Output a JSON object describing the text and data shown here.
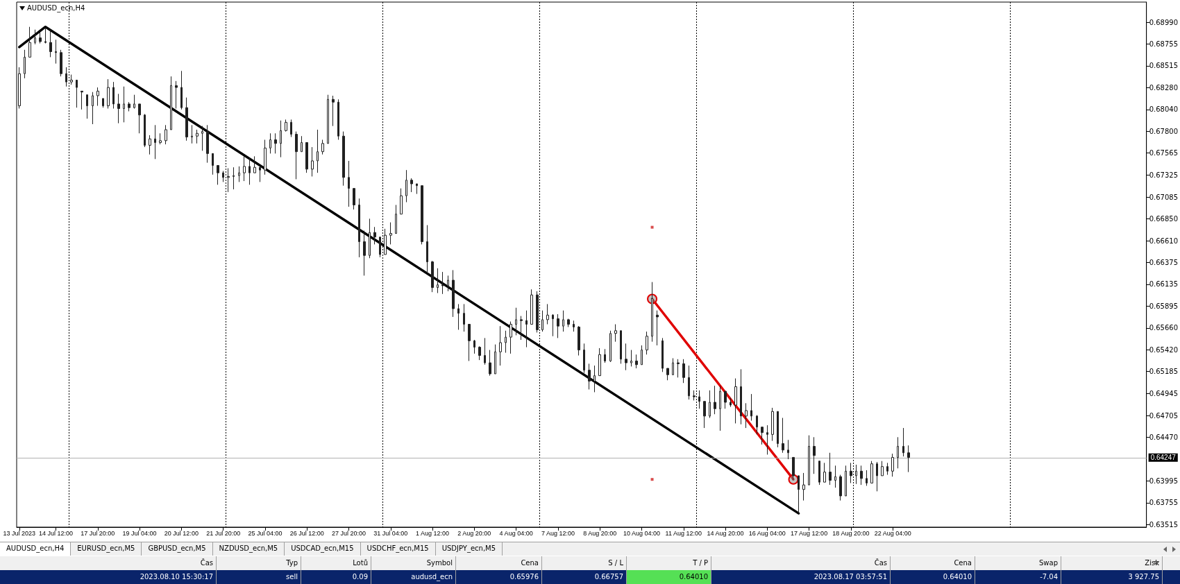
{
  "chart_data": {
    "type": "candlestick",
    "title": "AUDUSD_ecn,H4",
    "color": "#202020",
    "categories": [
      "13 Jul 2023",
      null,
      null,
      null,
      null,
      null,
      null,
      "14 Jul 12:00",
      null,
      null,
      null,
      null,
      null,
      null,
      null,
      "17 Jul 20:00",
      null,
      null,
      null,
      null,
      null,
      null,
      null,
      "19 Jul 04:00",
      null,
      null,
      null,
      null,
      null,
      null,
      null,
      "20 Jul 12:00",
      null,
      null,
      null,
      null,
      null,
      null,
      null,
      "21 Jul 20:00",
      null,
      null,
      null,
      null,
      null,
      null,
      null,
      "25 Jul 04:00",
      null,
      null,
      null,
      null,
      null,
      null,
      null,
      "26 Jul 12:00",
      null,
      null,
      null,
      null,
      null,
      null,
      null,
      "27 Jul 20:00",
      null,
      null,
      null,
      null,
      null,
      null,
      null,
      "31 Jul 04:00",
      null,
      null,
      null,
      null,
      null,
      null,
      null,
      "1 Aug 12:00",
      null,
      null,
      null,
      null,
      null,
      null,
      null,
      "2 Aug 20:00",
      null,
      null,
      null,
      null,
      null,
      null,
      null,
      "4 Aug 04:00",
      null,
      null,
      null,
      null,
      null,
      null,
      null,
      "7 Aug 12:00",
      null,
      null,
      null,
      null,
      null,
      null,
      null,
      "8 Aug 20:00",
      null,
      null,
      null,
      null,
      null,
      null,
      null,
      "10 Aug 04:00",
      null,
      null,
      null,
      null,
      null,
      null,
      null,
      "11 Aug 12:00",
      null,
      null,
      null,
      null,
      null,
      null,
      null,
      "14 Aug 20:00",
      null,
      null,
      null,
      null,
      null,
      null,
      null,
      "16 Aug 04:00",
      null,
      null,
      null,
      null,
      null,
      null,
      null,
      "17 Aug 12:00",
      null,
      null,
      null,
      null,
      null,
      null,
      null,
      "18 Aug 20:00",
      null,
      null,
      null,
      null,
      null,
      null,
      null,
      "22 Aug 04:00",
      null,
      null,
      null,
      null,
      null,
      null,
      null,
      null,
      null,
      null,
      null,
      null,
      null,
      null,
      null,
      null,
      null,
      null,
      null,
      null,
      null,
      null,
      null,
      null,
      null,
      null,
      null,
      null,
      null,
      null,
      null,
      null,
      null,
      null,
      null,
      null,
      null,
      null,
      null,
      null,
      null,
      null,
      null,
      null,
      null,
      null,
      null,
      null
    ],
    "ohlc": [
      [
        0.6808,
        0.685,
        0.6805,
        0.6843
      ],
      [
        0.6843,
        0.6869,
        0.6838,
        0.6861
      ],
      [
        0.6861,
        0.6894,
        0.6861,
        0.6877
      ],
      [
        0.6877,
        0.6891,
        0.6875,
        0.6882
      ],
      [
        0.6882,
        0.6888,
        0.6876,
        0.6878
      ],
      [
        0.6878,
        0.6893,
        0.6876,
        0.6877
      ],
      [
        0.6877,
        0.6891,
        0.6861,
        0.6867
      ],
      [
        0.6867,
        0.688,
        0.6854,
        0.6866
      ],
      [
        0.6866,
        0.6869,
        0.684,
        0.6843
      ],
      [
        0.6843,
        0.685,
        0.6829,
        0.6834
      ],
      [
        0.6834,
        0.6842,
        0.6831,
        0.6836
      ],
      [
        0.6836,
        0.6836,
        0.6806,
        0.6828
      ],
      [
        0.6824,
        0.6824,
        0.6804,
        0.6823
      ],
      [
        0.682,
        0.682,
        0.6794,
        0.6808
      ],
      [
        0.6808,
        0.6823,
        0.6788,
        0.6819
      ],
      [
        0.6819,
        0.6828,
        0.6808,
        0.6824
      ],
      [
        0.6816,
        0.6816,
        0.6806,
        0.6808
      ],
      [
        0.6808,
        0.6837,
        0.6805,
        0.6828
      ],
      [
        0.6828,
        0.6834,
        0.6805,
        0.681
      ],
      [
        0.681,
        0.6821,
        0.6789,
        0.6805
      ],
      [
        0.6805,
        0.6829,
        0.679,
        0.681
      ],
      [
        0.681,
        0.6812,
        0.6802,
        0.6806
      ],
      [
        0.6806,
        0.682,
        0.6805,
        0.681
      ],
      [
        0.681,
        0.681,
        0.6778,
        0.6798
      ],
      [
        0.6798,
        0.6799,
        0.6763,
        0.6765
      ],
      [
        0.6765,
        0.6776,
        0.6755,
        0.6772
      ],
      [
        0.6772,
        0.6787,
        0.675,
        0.6768
      ],
      [
        0.6768,
        0.6778,
        0.6766,
        0.677
      ],
      [
        0.677,
        0.6787,
        0.6766,
        0.6782
      ],
      [
        0.6782,
        0.684,
        0.6782,
        0.683
      ],
      [
        0.683,
        0.6835,
        0.6805,
        0.6828
      ],
      [
        0.6828,
        0.6846,
        0.6804,
        0.6806
      ],
      [
        0.6806,
        0.6817,
        0.677,
        0.6774
      ],
      [
        0.6774,
        0.6787,
        0.6767,
        0.6775
      ],
      [
        0.6775,
        0.6782,
        0.6767,
        0.6778
      ],
      [
        0.6778,
        0.6786,
        0.6759,
        0.678
      ],
      [
        0.678,
        0.6787,
        0.6746,
        0.6756
      ],
      [
        0.6756,
        0.6756,
        0.6733,
        0.6743
      ],
      [
        0.6743,
        0.6743,
        0.6722,
        0.6735
      ],
      [
        0.6735,
        0.6737,
        0.6725,
        0.673
      ],
      [
        0.673,
        0.674,
        0.6714,
        0.6731
      ],
      [
        0.6731,
        0.6741,
        0.6717,
        0.6732
      ],
      [
        0.6732,
        0.6742,
        0.6725,
        0.6735
      ],
      [
        0.6735,
        0.6753,
        0.6726,
        0.6742
      ],
      [
        0.6742,
        0.6751,
        0.6722,
        0.6735
      ],
      [
        0.6735,
        0.6753,
        0.6735,
        0.6741
      ],
      [
        0.6741,
        0.6741,
        0.6725,
        0.6738
      ],
      [
        0.6738,
        0.6771,
        0.6733,
        0.6762
      ],
      [
        0.6762,
        0.6778,
        0.6756,
        0.6771
      ],
      [
        0.6771,
        0.6778,
        0.6756,
        0.6767
      ],
      [
        0.6767,
        0.6792,
        0.6752,
        0.6781
      ],
      [
        0.6781,
        0.6793,
        0.678,
        0.679
      ],
      [
        0.679,
        0.6793,
        0.6774,
        0.6777
      ],
      [
        0.6777,
        0.678,
        0.6728,
        0.6758
      ],
      [
        0.6758,
        0.6775,
        0.6758,
        0.6768
      ],
      [
        0.6768,
        0.6768,
        0.6735,
        0.6739
      ],
      [
        0.6739,
        0.6763,
        0.6731,
        0.6748
      ],
      [
        0.6748,
        0.6782,
        0.6735,
        0.6758
      ],
      [
        0.6758,
        0.6771,
        0.6755,
        0.6767
      ],
      [
        0.6767,
        0.682,
        0.6767,
        0.6815
      ],
      [
        0.6815,
        0.6819,
        0.6786,
        0.6812
      ],
      [
        0.6812,
        0.6815,
        0.6771,
        0.6775
      ],
      [
        0.6775,
        0.678,
        0.6721,
        0.673
      ],
      [
        0.673,
        0.6748,
        0.6698,
        0.6718
      ],
      [
        0.6718,
        0.6718,
        0.6695,
        0.67
      ],
      [
        0.67,
        0.6707,
        0.6643,
        0.666
      ],
      [
        0.666,
        0.6672,
        0.6623,
        0.6645
      ],
      [
        0.6645,
        0.6685,
        0.6642,
        0.667
      ],
      [
        0.667,
        0.6676,
        0.6657,
        0.6665
      ],
      [
        0.6665,
        0.6665,
        0.6643,
        0.6646
      ],
      [
        0.6646,
        0.6674,
        0.6646,
        0.6667
      ],
      [
        0.6667,
        0.6681,
        0.6657,
        0.6669
      ],
      [
        0.6669,
        0.67,
        0.6669,
        0.669
      ],
      [
        0.669,
        0.6718,
        0.669,
        0.671
      ],
      [
        0.671,
        0.6738,
        0.6703,
        0.6727
      ],
      [
        0.6727,
        0.6729,
        0.6714,
        0.6723
      ],
      [
        0.6723,
        0.6723,
        0.6712,
        0.6721
      ],
      [
        0.6721,
        0.6721,
        0.6657,
        0.666
      ],
      [
        0.666,
        0.6678,
        0.6627,
        0.6638
      ],
      [
        0.6638,
        0.6639,
        0.6605,
        0.661
      ],
      [
        0.661,
        0.6631,
        0.6604,
        0.6613
      ],
      [
        0.6613,
        0.6627,
        0.6603,
        0.6612
      ],
      [
        0.6612,
        0.6623,
        0.6606,
        0.6618
      ],
      [
        0.6618,
        0.6629,
        0.6578,
        0.6587
      ],
      [
        0.6587,
        0.6592,
        0.6564,
        0.6582
      ],
      [
        0.6582,
        0.6592,
        0.6562,
        0.657
      ],
      [
        0.657,
        0.657,
        0.653,
        0.6552
      ],
      [
        0.6552,
        0.6553,
        0.6538,
        0.6545
      ],
      [
        0.6545,
        0.6546,
        0.6531,
        0.6536
      ],
      [
        0.6536,
        0.6555,
        0.6526,
        0.6528
      ],
      [
        0.6528,
        0.6542,
        0.6514,
        0.6516
      ],
      [
        0.6516,
        0.6548,
        0.6516,
        0.654
      ],
      [
        0.654,
        0.6568,
        0.6525,
        0.655
      ],
      [
        0.655,
        0.6563,
        0.6539,
        0.6556
      ],
      [
        0.6556,
        0.6573,
        0.6538,
        0.657
      ],
      [
        0.657,
        0.6588,
        0.6558,
        0.6575
      ],
      [
        0.6575,
        0.6579,
        0.6553,
        0.6574
      ],
      [
        0.6574,
        0.6585,
        0.6545,
        0.657
      ],
      [
        0.657,
        0.6608,
        0.657,
        0.6602
      ],
      [
        0.6602,
        0.6606,
        0.6561,
        0.6564
      ],
      [
        0.6564,
        0.6585,
        0.6562,
        0.6575
      ],
      [
        0.6575,
        0.6592,
        0.657,
        0.658
      ],
      [
        0.658,
        0.6581,
        0.6557,
        0.6576
      ],
      [
        0.6576,
        0.6581,
        0.6555,
        0.6568
      ],
      [
        0.6568,
        0.6585,
        0.6562,
        0.6575
      ],
      [
        0.6575,
        0.6576,
        0.6567,
        0.657
      ],
      [
        0.657,
        0.6574,
        0.6562,
        0.6567
      ],
      [
        0.6567,
        0.6568,
        0.6536,
        0.6542
      ],
      [
        0.6542,
        0.6549,
        0.6517,
        0.652
      ],
      [
        0.652,
        0.6527,
        0.6499,
        0.6508
      ],
      [
        0.6508,
        0.6525,
        0.6496,
        0.6514
      ],
      [
        0.6514,
        0.6544,
        0.6514,
        0.6537
      ],
      [
        0.6537,
        0.6543,
        0.6528,
        0.653
      ],
      [
        0.653,
        0.6563,
        0.6529,
        0.656
      ],
      [
        0.656,
        0.657,
        0.6551,
        0.6563
      ],
      [
        0.6563,
        0.6563,
        0.6527,
        0.6532
      ],
      [
        0.6532,
        0.6549,
        0.652,
        0.6528
      ],
      [
        0.6528,
        0.6542,
        0.6524,
        0.653
      ],
      [
        0.653,
        0.6537,
        0.6522,
        0.6526
      ],
      [
        0.6526,
        0.6547,
        0.6526,
        0.6542
      ],
      [
        0.6542,
        0.6562,
        0.6537,
        0.6557
      ],
      [
        0.6557,
        0.6616,
        0.6551,
        0.6598
      ],
      [
        0.658,
        0.6585,
        0.6547,
        0.6578
      ],
      [
        0.6552,
        0.6555,
        0.6518,
        0.6522
      ],
      [
        0.6522,
        0.6522,
        0.6509,
        0.6515
      ],
      [
        0.6515,
        0.6533,
        0.6515,
        0.6528
      ],
      [
        0.6528,
        0.6532,
        0.6512,
        0.6527
      ],
      [
        0.6527,
        0.6532,
        0.6506,
        0.6512
      ],
      [
        0.6512,
        0.6525,
        0.6488,
        0.6492
      ],
      [
        0.6492,
        0.6498,
        0.6487,
        0.6491
      ],
      [
        0.6491,
        0.6498,
        0.6478,
        0.6486
      ],
      [
        0.6486,
        0.6486,
        0.6457,
        0.647
      ],
      [
        0.647,
        0.6498,
        0.6468,
        0.6485
      ],
      [
        0.6485,
        0.6503,
        0.6472,
        0.6478
      ],
      [
        0.6478,
        0.6503,
        0.6454,
        0.6497
      ],
      [
        0.6497,
        0.6497,
        0.6478,
        0.6485
      ],
      [
        0.6485,
        0.649,
        0.648,
        0.6482
      ],
      [
        0.6482,
        0.6511,
        0.6462,
        0.6502
      ],
      [
        0.6502,
        0.6521,
        0.6461,
        0.647
      ],
      [
        0.647,
        0.6484,
        0.6457,
        0.6476
      ],
      [
        0.6476,
        0.6494,
        0.6465,
        0.647
      ],
      [
        0.647,
        0.6471,
        0.645,
        0.6458
      ],
      [
        0.6458,
        0.6458,
        0.6439,
        0.6452
      ],
      [
        0.6452,
        0.646,
        0.6428,
        0.645
      ],
      [
        0.645,
        0.6479,
        0.6443,
        0.6475
      ],
      [
        0.6475,
        0.6475,
        0.6436,
        0.644
      ],
      [
        0.644,
        0.6468,
        0.643,
        0.6433
      ],
      [
        0.6433,
        0.6444,
        0.6423,
        0.643
      ],
      [
        0.6425,
        0.6425,
        0.64,
        0.6405
      ],
      [
        0.6405,
        0.6405,
        0.6364,
        0.639
      ],
      [
        0.639,
        0.6408,
        0.6378,
        0.6395
      ],
      [
        0.6395,
        0.6449,
        0.6395,
        0.6437
      ],
      [
        0.6437,
        0.6447,
        0.6407,
        0.6427
      ],
      [
        0.6421,
        0.6421,
        0.6395,
        0.6398
      ],
      [
        0.6398,
        0.6419,
        0.6398,
        0.6409
      ],
      [
        0.6409,
        0.643,
        0.6395,
        0.64
      ],
      [
        0.64,
        0.6416,
        0.6392,
        0.6404
      ],
      [
        0.6404,
        0.6406,
        0.6378,
        0.6383
      ],
      [
        0.6383,
        0.6416,
        0.6383,
        0.641
      ],
      [
        0.641,
        0.6419,
        0.6397,
        0.6405
      ],
      [
        0.6405,
        0.6417,
        0.6396,
        0.641
      ],
      [
        0.641,
        0.6416,
        0.6395,
        0.6402
      ],
      [
        0.6402,
        0.6411,
        0.6394,
        0.6397
      ],
      [
        0.6397,
        0.6421,
        0.6397,
        0.6418
      ],
      [
        0.6418,
        0.642,
        0.6388,
        0.6405
      ],
      [
        0.6405,
        0.6421,
        0.6405,
        0.6415
      ],
      [
        0.6415,
        0.6419,
        0.6406,
        0.641
      ],
      [
        0.641,
        0.6429,
        0.6404,
        0.6425
      ],
      [
        0.6425,
        0.6447,
        0.6413,
        0.6437
      ],
      [
        0.6437,
        0.6457,
        0.6426,
        0.643
      ],
      [
        0.643,
        0.6438,
        0.6409,
        0.6425
      ],
      null,
      null,
      null,
      null,
      null,
      null,
      null,
      null,
      null,
      null,
      null,
      null,
      null,
      null,
      null,
      null,
      null,
      null,
      null,
      null,
      null,
      null,
      null,
      null,
      null,
      null,
      null,
      null,
      null,
      null,
      null,
      null,
      null,
      null,
      null,
      null,
      null,
      null,
      null,
      null,
      null,
      null,
      null,
      null,
      null
    ],
    "series": [
      {
        "type": "line",
        "color": "#000000",
        "values": [
          0.6872,
          null,
          null,
          null,
          null,
          0.6894,
          null,
          null,
          null,
          null,
          null,
          null,
          null,
          null,
          null,
          null,
          null,
          null,
          null,
          null,
          null,
          null,
          null,
          null,
          null,
          null,
          null,
          null,
          null,
          null,
          null,
          null,
          null,
          null,
          null,
          null,
          null,
          null,
          null,
          null,
          null,
          null,
          null,
          null,
          null,
          null,
          null,
          null,
          null,
          null,
          null,
          null,
          null,
          null,
          null,
          null,
          null,
          null,
          null,
          null,
          null,
          null,
          null,
          null,
          null,
          null,
          null,
          null,
          null,
          null,
          null,
          null,
          null,
          null,
          null,
          null,
          null,
          null,
          null,
          null,
          null,
          null,
          null,
          null,
          null,
          null,
          null,
          null,
          null,
          null,
          null,
          null,
          null,
          null,
          null,
          null,
          null,
          null,
          null,
          null,
          null,
          null,
          null,
          null,
          null,
          null,
          null,
          null,
          null,
          null,
          null,
          null,
          null,
          null,
          null,
          null,
          null,
          null,
          null,
          null,
          null,
          null,
          null,
          null,
          null,
          null,
          null,
          null,
          null,
          null,
          null,
          null,
          null,
          null,
          null,
          null,
          null,
          null,
          null,
          null,
          null,
          null,
          null,
          null,
          null,
          null,
          null,
          null,
          null,
          0.6364,
          null,
          null,
          null,
          null,
          null,
          null,
          null,
          null,
          null,
          null,
          null,
          null,
          null,
          null,
          null,
          null,
          null,
          null,
          null,
          null,
          null,
          null,
          null,
          null,
          null,
          null,
          null,
          null,
          null,
          null,
          null,
          null,
          null,
          null,
          null,
          null,
          null,
          null,
          null,
          null,
          null,
          null,
          null,
          null,
          null,
          null,
          null,
          null,
          null,
          null,
          null,
          null,
          null,
          null,
          null,
          null,
          null,
          null,
          null,
          null,
          null,
          null,
          null,
          null,
          null,
          null
        ]
      },
      {
        "type": "line",
        "color": "#e00000",
        "marker": "circle",
        "values": [
          null,
          null,
          null,
          null,
          null,
          null,
          null,
          null,
          null,
          null,
          null,
          null,
          null,
          null,
          null,
          null,
          null,
          null,
          null,
          null,
          null,
          null,
          null,
          null,
          null,
          null,
          null,
          null,
          null,
          null,
          null,
          null,
          null,
          null,
          null,
          null,
          null,
          null,
          null,
          null,
          null,
          null,
          null,
          null,
          null,
          null,
          null,
          null,
          null,
          null,
          null,
          null,
          null,
          null,
          null,
          null,
          null,
          null,
          null,
          null,
          null,
          null,
          null,
          null,
          null,
          null,
          null,
          null,
          null,
          null,
          null,
          null,
          null,
          null,
          null,
          null,
          null,
          null,
          null,
          null,
          null,
          null,
          null,
          null,
          null,
          null,
          null,
          null,
          null,
          null,
          null,
          null,
          null,
          null,
          null,
          null,
          null,
          null,
          null,
          null,
          null,
          null,
          null,
          null,
          null,
          null,
          null,
          null,
          null,
          null,
          null,
          null,
          null,
          null,
          null,
          null,
          null,
          null,
          null,
          null,
          null,
          0.65976,
          null,
          null,
          null,
          null,
          null,
          null,
          null,
          null,
          null,
          null,
          null,
          null,
          null,
          null,
          null,
          null,
          null,
          null,
          null,
          null,
          null,
          null,
          null,
          null,
          null,
          null,
          0.6401,
          null,
          null,
          null,
          null,
          null,
          null,
          null,
          null,
          null,
          null,
          null,
          null,
          null,
          null,
          null,
          null,
          null,
          null,
          null,
          null,
          null,
          null,
          null,
          null,
          null,
          null,
          null,
          null,
          null,
          null,
          null,
          null,
          null,
          null,
          null,
          null,
          null,
          null,
          null,
          null,
          null,
          null,
          null,
          null,
          null,
          null,
          null,
          null,
          null,
          null,
          null,
          null,
          null,
          null,
          null,
          null,
          null,
          null,
          null,
          null,
          null,
          null,
          null,
          null,
          null,
          null,
          null
        ]
      },
      {
        "type": "scatter",
        "color": "#d02020",
        "marker": "square",
        "values": [
          null,
          null,
          null,
          null,
          null,
          null,
          null,
          null,
          null,
          null,
          null,
          null,
          null,
          null,
          null,
          null,
          null,
          null,
          null,
          null,
          null,
          null,
          null,
          null,
          null,
          null,
          null,
          null,
          null,
          null,
          null,
          null,
          null,
          null,
          null,
          null,
          null,
          null,
          null,
          null,
          null,
          null,
          null,
          null,
          null,
          null,
          null,
          null,
          null,
          null,
          null,
          null,
          null,
          null,
          null,
          null,
          null,
          null,
          null,
          null,
          null,
          null,
          null,
          null,
          null,
          null,
          null,
          null,
          null,
          null,
          null,
          null,
          null,
          null,
          null,
          null,
          null,
          null,
          null,
          null,
          null,
          null,
          null,
          null,
          null,
          null,
          null,
          null,
          null,
          null,
          null,
          null,
          null,
          null,
          null,
          null,
          null,
          null,
          null,
          null,
          null,
          null,
          null,
          null,
          null,
          null,
          null,
          null,
          null,
          null,
          null,
          null,
          null,
          null,
          null,
          null,
          null,
          null,
          null,
          null,
          null,
          0.66757,
          null,
          null,
          null,
          null,
          null,
          null,
          null,
          null,
          null,
          null,
          null,
          null,
          null,
          null,
          null,
          null,
          null,
          null,
          null,
          null,
          null,
          null,
          null,
          null,
          null,
          null,
          null,
          null,
          null,
          null,
          null,
          null,
          null,
          null,
          null,
          null,
          null,
          null,
          null,
          null,
          null,
          null,
          null,
          null,
          null,
          null,
          null,
          null,
          null,
          null,
          null,
          null,
          null,
          null,
          null,
          null,
          null,
          null,
          null,
          null,
          null,
          null,
          null,
          null,
          null,
          null,
          null,
          null,
          null,
          null,
          null,
          null,
          null,
          null,
          null,
          null,
          null,
          null,
          null,
          null,
          null,
          null,
          null,
          null,
          null,
          null,
          null,
          null,
          null,
          null,
          null,
          null,
          null,
          null
        ]
      },
      {
        "type": "scatter",
        "color": "#d02020",
        "marker": "square",
        "values": [
          null,
          null,
          null,
          null,
          null,
          null,
          null,
          null,
          null,
          null,
          null,
          null,
          null,
          null,
          null,
          null,
          null,
          null,
          null,
          null,
          null,
          null,
          null,
          null,
          null,
          null,
          null,
          null,
          null,
          null,
          null,
          null,
          null,
          null,
          null,
          null,
          null,
          null,
          null,
          null,
          null,
          null,
          null,
          null,
          null,
          null,
          null,
          null,
          null,
          null,
          null,
          null,
          null,
          null,
          null,
          null,
          null,
          null,
          null,
          null,
          null,
          null,
          null,
          null,
          null,
          null,
          null,
          null,
          null,
          null,
          null,
          null,
          null,
          null,
          null,
          null,
          null,
          null,
          null,
          null,
          null,
          null,
          null,
          null,
          null,
          null,
          null,
          null,
          null,
          null,
          null,
          null,
          null,
          null,
          null,
          null,
          null,
          null,
          null,
          null,
          null,
          null,
          null,
          null,
          null,
          null,
          null,
          null,
          null,
          null,
          null,
          null,
          null,
          null,
          null,
          null,
          null,
          null,
          null,
          null,
          null,
          0.6401,
          null,
          null,
          null,
          null,
          null,
          null,
          null,
          null,
          null,
          null,
          null,
          null,
          null,
          null,
          null,
          null,
          null,
          null,
          null,
          null,
          null,
          null,
          null,
          null,
          null,
          null,
          null,
          null,
          null,
          null,
          null,
          null,
          null,
          null,
          null,
          null,
          null,
          null,
          null,
          null,
          null,
          null,
          null,
          null,
          null,
          null,
          null,
          null,
          null,
          null,
          null,
          null,
          null,
          null,
          null,
          null,
          null,
          null,
          null,
          null,
          null,
          null,
          null,
          null,
          null,
          null,
          null,
          null,
          null,
          null,
          null,
          null,
          null,
          null,
          null,
          null,
          null,
          null,
          null,
          null,
          null,
          null,
          null,
          null,
          null,
          null,
          null,
          null,
          null,
          null,
          null,
          null,
          null,
          null
        ]
      }
    ],
    "ylim": [
      0.6349,
      0.6921
    ],
    "yticks": [
      {
        "value": 0.6899,
        "label": "0.68990"
      },
      {
        "value": 0.68755,
        "label": "0.68755"
      },
      {
        "value": 0.68515,
        "label": "0.68515"
      },
      {
        "value": 0.6828,
        "label": "0.68280"
      },
      {
        "value": 0.6804,
        "label": "0.68040"
      },
      {
        "value": 0.678,
        "label": "0.67800"
      },
      {
        "value": 0.67565,
        "label": "0.67565"
      },
      {
        "value": 0.67325,
        "label": "0.67325"
      },
      {
        "value": 0.67085,
        "label": "0.67085"
      },
      {
        "value": 0.6685,
        "label": "0.66850"
      },
      {
        "value": 0.6661,
        "label": "0.66610"
      },
      {
        "value": 0.66375,
        "label": "0.66375"
      },
      {
        "value": 0.66135,
        "label": "0.66135"
      },
      {
        "value": 0.65895,
        "label": "0.65895"
      },
      {
        "value": 0.6566,
        "label": "0.65660"
      },
      {
        "value": 0.6542,
        "label": "0.65420"
      },
      {
        "value": 0.65185,
        "label": "0.65185"
      },
      {
        "value": 0.64945,
        "label": "0.64945"
      },
      {
        "value": 0.64705,
        "label": "0.64705"
      },
      {
        "value": 0.6447,
        "label": "0.64470"
      },
      {
        "value": 0.63995,
        "label": "0.63995"
      },
      {
        "value": 0.63755,
        "label": "0.63755"
      },
      {
        "value": 0.63515,
        "label": "0.63515"
      }
    ],
    "ref_lines": [
      {
        "axis": "y",
        "value": 0.64247,
        "label": "0.64247",
        "color": "#b0b0b0"
      }
    ],
    "grid": "x",
    "annotations": [
      "AUDUSD_ecn,H4",
      "EURUSD_ecn,M5",
      "GBPUSD_ecn,M5",
      "NZDUSD_ecn,M5",
      "USDCAD_ecn,M15",
      "USDCHF_ecn,M15",
      "USDJPY_ecn,M5",
      "Čas",
      "Typ",
      "Lotů",
      "Symbol",
      "Cena",
      "S / L",
      "T / P",
      "Čas",
      "Cena",
      "Swap",
      "Zisk",
      "2023.08.10 15:30:17",
      "sell",
      "0.09",
      "audusd_ecn",
      "0.65976",
      "0.66757",
      "0.64010",
      "2023.08.17 03:57:51",
      "0.64010",
      "-7.04",
      "3 927.75"
    ]
  }
}
